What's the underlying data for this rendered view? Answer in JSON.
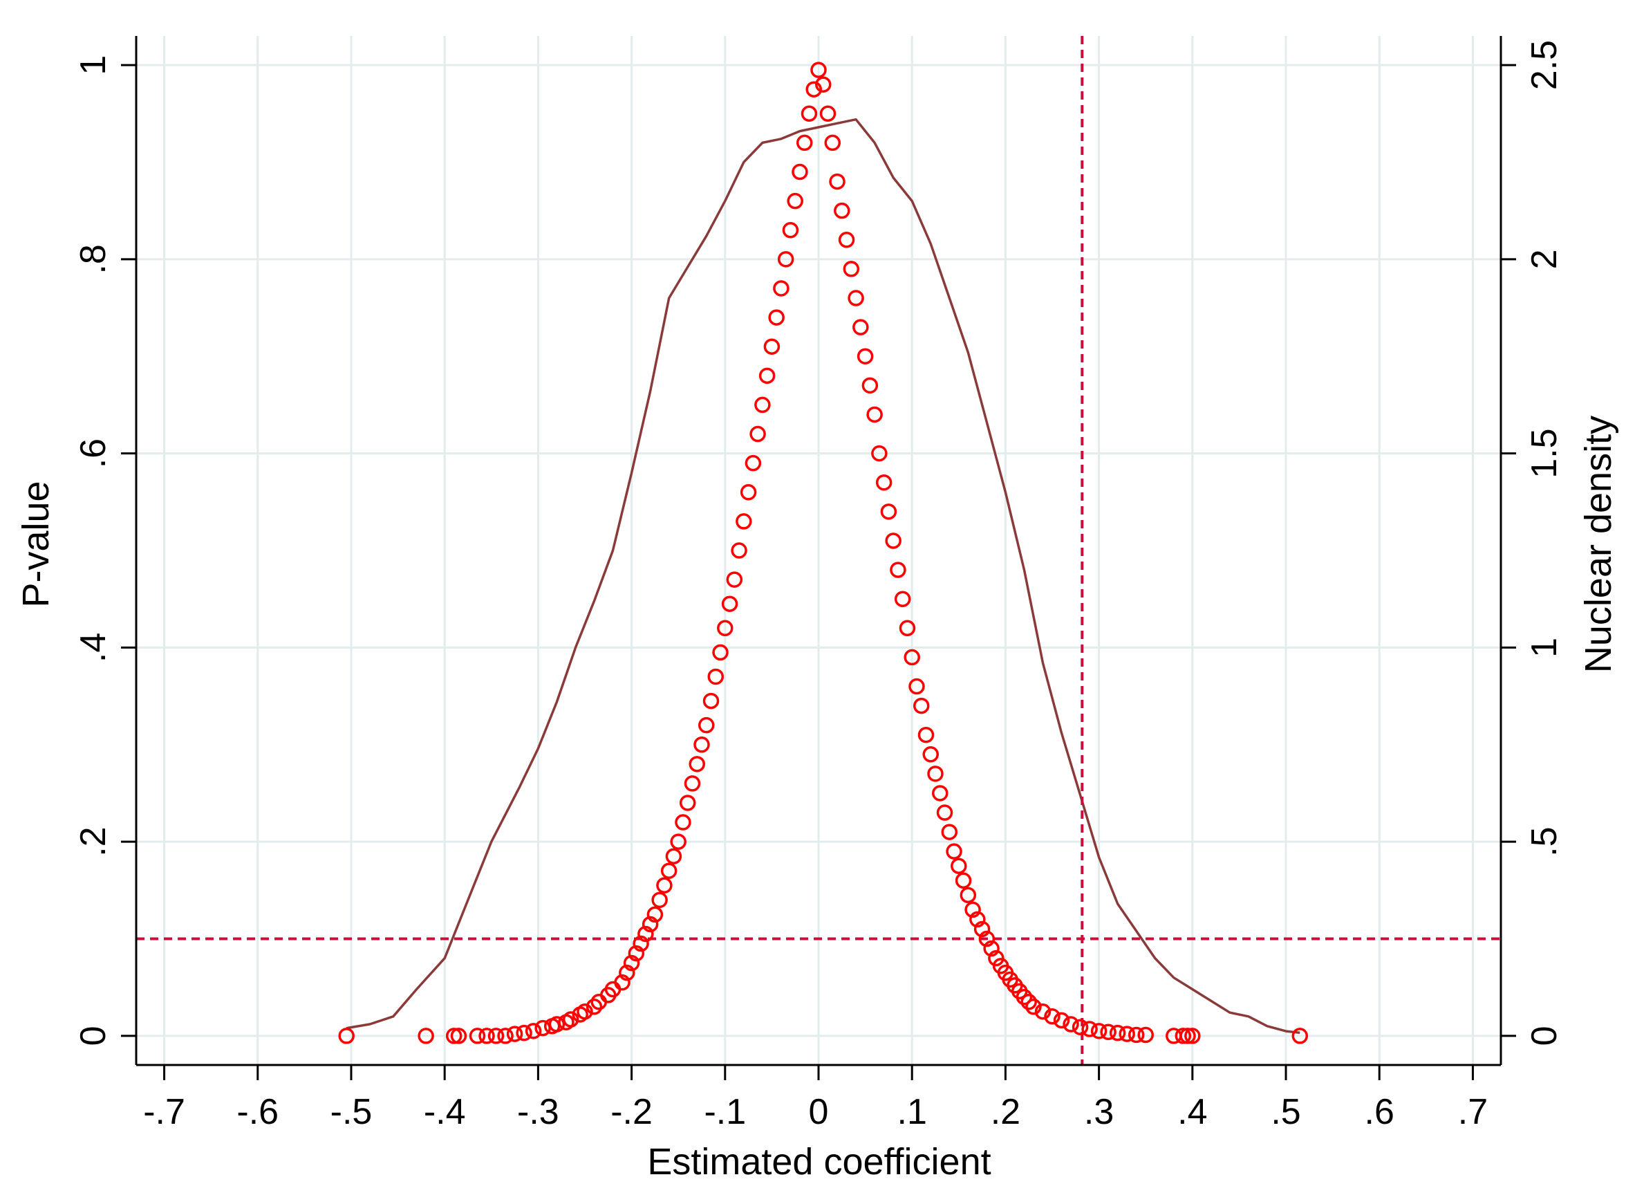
{
  "chart_data": {
    "type": "scatter",
    "title": "",
    "xlabel": "Estimated coefficient",
    "ylabel": "P-value",
    "y2label": "Nuclear density",
    "xlim": [
      -0.73,
      0.73
    ],
    "ylim": [
      -0.03,
      1.03
    ],
    "y2lim": [
      -0.075,
      2.575
    ],
    "grid": true,
    "legend": "none",
    "x_ticks": [
      {
        "value": -0.7,
        "label": "-.7"
      },
      {
        "value": -0.6,
        "label": "-.6"
      },
      {
        "value": -0.5,
        "label": "-.5"
      },
      {
        "value": -0.4,
        "label": "-.4"
      },
      {
        "value": -0.3,
        "label": "-.3"
      },
      {
        "value": -0.2,
        "label": "-.2"
      },
      {
        "value": -0.1,
        "label": "-.1"
      },
      {
        "value": 0,
        "label": "0"
      },
      {
        "value": 0.1,
        "label": ".1"
      },
      {
        "value": 0.2,
        "label": ".2"
      },
      {
        "value": 0.3,
        "label": ".3"
      },
      {
        "value": 0.4,
        "label": ".4"
      },
      {
        "value": 0.5,
        "label": ".5"
      },
      {
        "value": 0.6,
        "label": ".6"
      },
      {
        "value": 0.7,
        "label": ".7"
      }
    ],
    "y_ticks": [
      {
        "value": 0,
        "label": "0"
      },
      {
        "value": 0.2,
        "label": ".2"
      },
      {
        "value": 0.4,
        "label": ".4"
      },
      {
        "value": 0.6,
        "label": ".6"
      },
      {
        "value": 0.8,
        "label": ".8"
      },
      {
        "value": 1,
        "label": "1"
      }
    ],
    "y2_ticks": [
      {
        "value": 0,
        "label": "0"
      },
      {
        "value": 0.5,
        "label": ".5"
      },
      {
        "value": 1,
        "label": "1"
      },
      {
        "value": 1.5,
        "label": "1.5"
      },
      {
        "value": 2,
        "label": "2"
      },
      {
        "value": 2.5,
        "label": "2.5"
      }
    ],
    "reference_lines": {
      "x": 0.282,
      "y": 0.1
    },
    "density": {
      "axis": "y2",
      "x": [
        -0.505,
        -0.48,
        -0.455,
        -0.43,
        -0.4,
        -0.37,
        -0.35,
        -0.32,
        -0.3,
        -0.28,
        -0.26,
        -0.24,
        -0.22,
        -0.2,
        -0.18,
        -0.16,
        -0.14,
        -0.12,
        -0.1,
        -0.08,
        -0.06,
        -0.04,
        -0.02,
        0,
        0.02,
        0.04,
        0.06,
        0.08,
        0.1,
        0.12,
        0.14,
        0.16,
        0.18,
        0.2,
        0.22,
        0.24,
        0.26,
        0.28,
        0.3,
        0.32,
        0.34,
        0.36,
        0.38,
        0.4,
        0.42,
        0.44,
        0.46,
        0.48,
        0.5,
        0.515
      ],
      "y": [
        0.02,
        0.03,
        0.05,
        0.12,
        0.2,
        0.38,
        0.5,
        0.64,
        0.74,
        0.86,
        1.0,
        1.12,
        1.25,
        1.45,
        1.66,
        1.9,
        1.98,
        2.06,
        2.15,
        2.25,
        2.3,
        2.31,
        2.33,
        2.34,
        2.35,
        2.36,
        2.3,
        2.21,
        2.15,
        2.04,
        1.9,
        1.76,
        1.58,
        1.4,
        1.2,
        0.96,
        0.78,
        0.62,
        0.46,
        0.34,
        0.27,
        0.2,
        0.15,
        0.12,
        0.09,
        0.06,
        0.05,
        0.025,
        0.012,
        0.008
      ]
    },
    "series": [
      {
        "marker": "hollow-circle",
        "x": [
          -0.505,
          -0.42,
          -0.39,
          -0.385,
          -0.365,
          -0.355,
          -0.345,
          -0.335,
          -0.325,
          -0.315,
          -0.305,
          -0.295,
          -0.285,
          -0.28,
          -0.27,
          -0.265,
          -0.255,
          -0.25,
          -0.24,
          -0.235,
          -0.225,
          -0.22,
          -0.21,
          -0.205,
          -0.2,
          -0.195,
          -0.19,
          -0.185,
          -0.18,
          -0.175,
          -0.17,
          -0.165,
          -0.16,
          -0.155,
          -0.15,
          -0.145,
          -0.14,
          -0.135,
          -0.13,
          -0.125,
          -0.12,
          -0.115,
          -0.11,
          -0.105,
          -0.1,
          -0.095,
          -0.09,
          -0.085,
          -0.08,
          -0.075,
          -0.07,
          -0.065,
          -0.06,
          -0.055,
          -0.05,
          -0.045,
          -0.04,
          -0.035,
          -0.03,
          -0.025,
          -0.02,
          -0.015,
          -0.01,
          -0.005,
          0,
          0.005,
          0.01,
          0.015,
          0.02,
          0.025,
          0.03,
          0.035,
          0.04,
          0.045,
          0.05,
          0.055,
          0.06,
          0.065,
          0.07,
          0.075,
          0.08,
          0.085,
          0.09,
          0.095,
          0.1,
          0.105,
          0.11,
          0.115,
          0.12,
          0.125,
          0.13,
          0.135,
          0.14,
          0.145,
          0.15,
          0.155,
          0.16,
          0.165,
          0.17,
          0.175,
          0.18,
          0.185,
          0.19,
          0.195,
          0.2,
          0.205,
          0.21,
          0.215,
          0.22,
          0.225,
          0.23,
          0.24,
          0.25,
          0.26,
          0.27,
          0.28,
          0.29,
          0.3,
          0.31,
          0.32,
          0.33,
          0.34,
          0.35,
          0.38,
          0.39,
          0.395,
          0.4,
          0.515
        ],
        "y": [
          0,
          0,
          0,
          0,
          0,
          0,
          0,
          0,
          0.002,
          0.003,
          0.005,
          0.008,
          0.01,
          0.012,
          0.014,
          0.017,
          0.022,
          0.025,
          0.03,
          0.035,
          0.042,
          0.048,
          0.055,
          0.065,
          0.075,
          0.085,
          0.095,
          0.105,
          0.115,
          0.125,
          0.14,
          0.155,
          0.17,
          0.185,
          0.2,
          0.22,
          0.24,
          0.26,
          0.28,
          0.3,
          0.32,
          0.345,
          0.37,
          0.395,
          0.42,
          0.445,
          0.47,
          0.5,
          0.53,
          0.56,
          0.59,
          0.62,
          0.65,
          0.68,
          0.71,
          0.74,
          0.77,
          0.8,
          0.83,
          0.86,
          0.89,
          0.92,
          0.95,
          0.975,
          0.995,
          0.98,
          0.95,
          0.92,
          0.88,
          0.85,
          0.82,
          0.79,
          0.76,
          0.73,
          0.7,
          0.67,
          0.64,
          0.6,
          0.57,
          0.54,
          0.51,
          0.48,
          0.45,
          0.42,
          0.39,
          0.36,
          0.34,
          0.31,
          0.29,
          0.27,
          0.25,
          0.23,
          0.21,
          0.19,
          0.175,
          0.16,
          0.145,
          0.13,
          0.12,
          0.11,
          0.1,
          0.09,
          0.08,
          0.072,
          0.065,
          0.058,
          0.052,
          0.046,
          0.04,
          0.035,
          0.03,
          0.025,
          0.02,
          0.016,
          0.012,
          0.009,
          0.007,
          0.005,
          0.004,
          0.003,
          0.002,
          0.001,
          0.001,
          0,
          0,
          0,
          0,
          0
        ]
      }
    ]
  },
  "colors": {
    "background": "#ffffff",
    "grid": "#e3ecec",
    "axis": "#000000",
    "density": "#8b3a3a",
    "points": "#ff0000",
    "reference_line": "#c8103c"
  }
}
